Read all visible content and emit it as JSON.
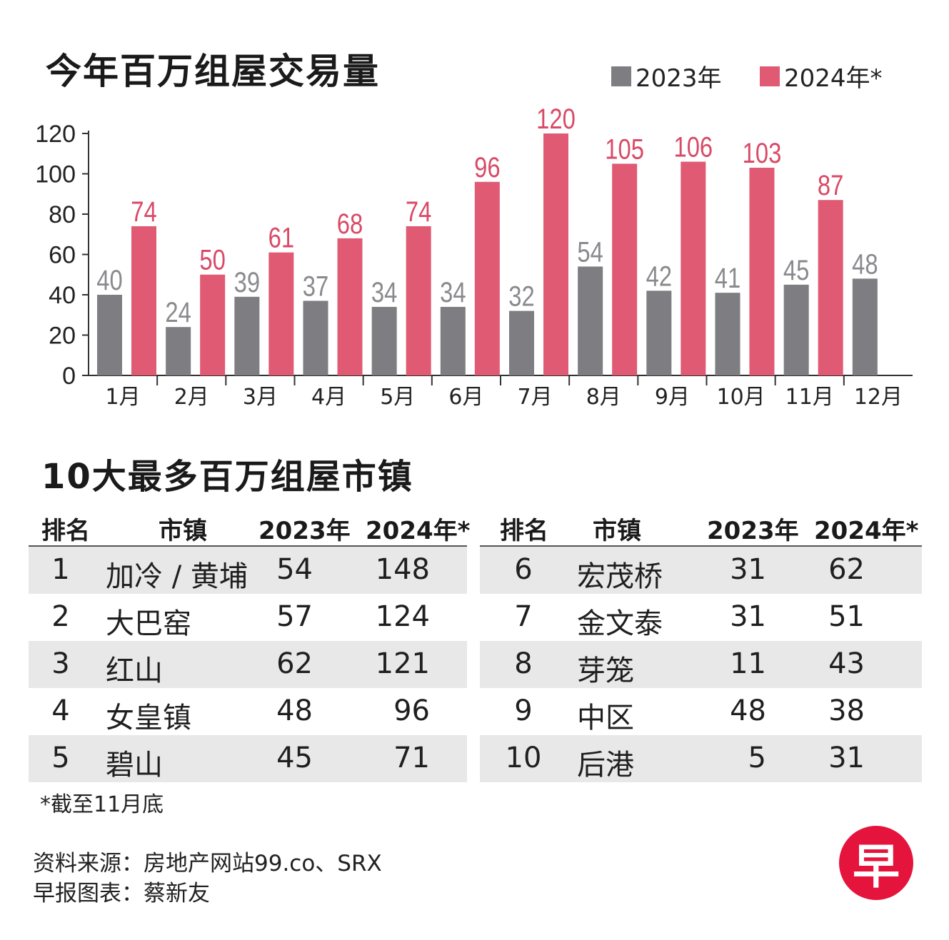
{
  "title": "今年百万组屋交易量",
  "legend": {
    "label_2023": "2023年",
    "label_2024": "2024年*",
    "color_2023": "#7d7d82",
    "color_2024": "#e05a73"
  },
  "chart_data": {
    "type": "bar",
    "title": "今年百万组屋交易量",
    "xlabel": "",
    "ylabel": "",
    "ylim": [
      0,
      120
    ],
    "yticks": [
      0,
      20,
      40,
      60,
      80,
      100,
      120
    ],
    "categories": [
      "1月",
      "2月",
      "3月",
      "4月",
      "5月",
      "6月",
      "7月",
      "8月",
      "9月",
      "10月",
      "11月",
      "12月"
    ],
    "series": [
      {
        "name": "2023年",
        "color": "#7d7d82",
        "values": [
          40,
          24,
          39,
          37,
          34,
          34,
          32,
          54,
          42,
          41,
          45,
          48
        ]
      },
      {
        "name": "2024年*",
        "color": "#e05a73",
        "values": [
          74,
          50,
          61,
          68,
          74,
          96,
          120,
          105,
          106,
          103,
          87,
          null
        ]
      }
    ],
    "grid": false,
    "legend_position": "top-right"
  },
  "table": {
    "title": "10大最多百万组屋市镇",
    "headers": {
      "rank": "排名",
      "town": "市镇",
      "y2023": "2023年",
      "y2024": "2024年*"
    },
    "left_rows": [
      {
        "rank": "1",
        "town": "加冷 / 黄埔",
        "y2023": "54",
        "y2024": "148"
      },
      {
        "rank": "2",
        "town": "大巴窑",
        "y2023": "57",
        "y2024": "124"
      },
      {
        "rank": "3",
        "town": "红山",
        "y2023": "62",
        "y2024": "121"
      },
      {
        "rank": "4",
        "town": "女皇镇",
        "y2023": "48",
        "y2024": "96"
      },
      {
        "rank": "5",
        "town": "碧山",
        "y2023": "45",
        "y2024": "71"
      }
    ],
    "right_rows": [
      {
        "rank": "6",
        "town": "宏茂桥",
        "y2023": "31",
        "y2024": "62"
      },
      {
        "rank": "7",
        "town": "金文泰",
        "y2023": "31",
        "y2024": "51"
      },
      {
        "rank": "8",
        "town": "芽笼",
        "y2023": "11",
        "y2024": "43"
      },
      {
        "rank": "9",
        "town": "中区",
        "y2023": "48",
        "y2024": "38"
      },
      {
        "rank": "10",
        "town": "后港",
        "y2023": "5",
        "y2024": "31"
      }
    ]
  },
  "footnote": "*截至11月底",
  "source": "资料来源：房地产网站99.co、SRX",
  "credit": "早报图表：蔡新友",
  "logo_char": "早"
}
